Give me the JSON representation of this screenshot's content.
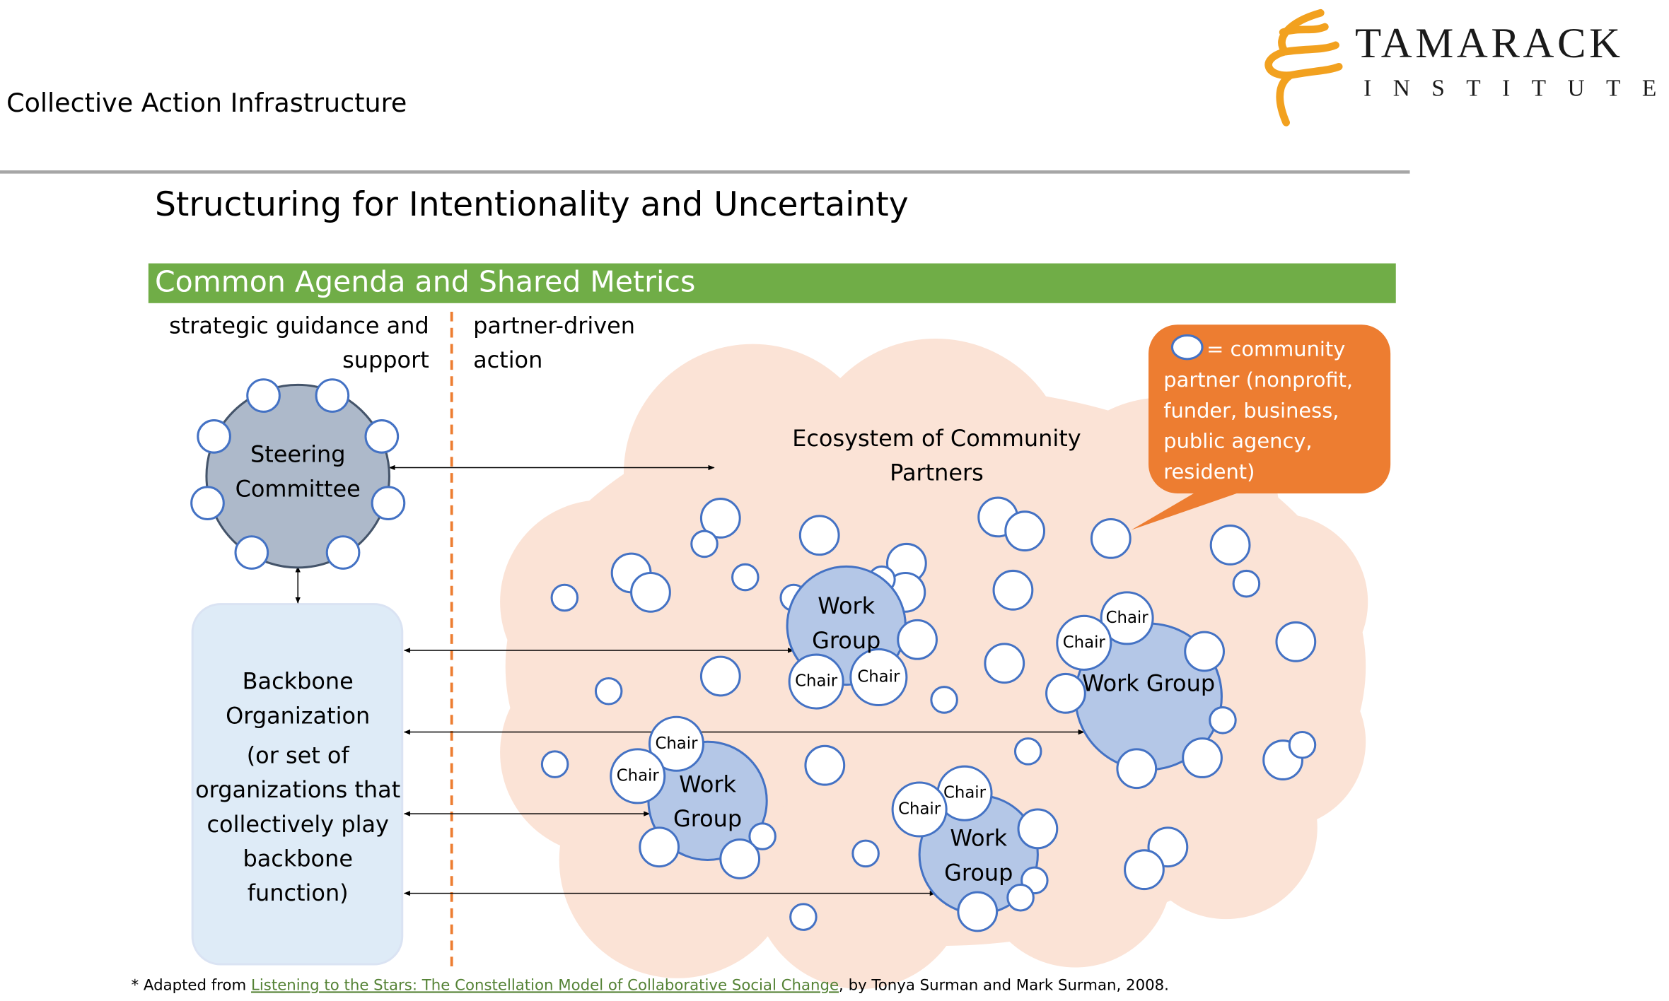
{
  "header": {
    "title": "Collective Action Infrastructure",
    "logo": {
      "name": "TAMARACK",
      "subtitle": "INSTITUTE"
    }
  },
  "slide_title": "Structuring for Intentionality and Uncertainty",
  "banner": "Common Agenda and Shared Metrics",
  "left_heading": [
    "strategic guidance and",
    "support"
  ],
  "right_heading": [
    "partner-driven",
    "action"
  ],
  "steering_committee": [
    "Steering",
    "Committee"
  ],
  "backbone": [
    "Backbone",
    "Organization",
    "(or set of",
    "organizations that",
    "collectively play",
    "backbone",
    "function)"
  ],
  "ecosystem": [
    "Ecosystem of Community",
    "Partners"
  ],
  "legend": [
    "= community",
    "partner (nonprofit,",
    "funder, business,",
    "public agency,",
    "resident)"
  ],
  "work_groups": [
    {
      "label": [
        "Work",
        "Group"
      ],
      "chairs": [
        "Chair",
        "Chair"
      ]
    },
    {
      "label": [
        "Work Group"
      ],
      "chairs": [
        "Chair",
        "Chair"
      ]
    },
    {
      "label": [
        "Work",
        "Group"
      ],
      "chairs": [
        "Chair",
        "Chair"
      ]
    },
    {
      "label": [
        "Work",
        "Group"
      ],
      "chairs": [
        "Chair",
        "Chair"
      ]
    }
  ],
  "footnote": {
    "prefix": "* Adapted from ",
    "link": "Listening to the Stars: The Constellation Model of Collaborative Social Change",
    "suffix": ", by Tonya Surman and Mark Surman, 2008."
  }
}
